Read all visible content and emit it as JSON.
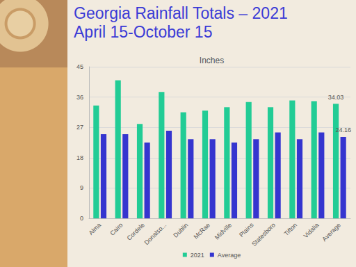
{
  "chart_data": {
    "type": "bar",
    "title": "Georgia Rainfall Totals – 2021\nApril 15-October 15",
    "subtitle": "Inches",
    "categories": [
      "Alma",
      "Cairo",
      "Cordele",
      "Donalso...",
      "Dublin",
      "McRae",
      "Midville",
      "Plains",
      "Statesboro",
      "Tifton",
      "Vidalia",
      "Average"
    ],
    "series": [
      {
        "name": "2021",
        "color": "#22cc95",
        "values": [
          33.5,
          41,
          28,
          37.5,
          31.5,
          32,
          33,
          34.5,
          33,
          35,
          34.8,
          34.03
        ],
        "value_labels": [
          null,
          null,
          null,
          null,
          null,
          null,
          null,
          null,
          null,
          null,
          null,
          "34.03"
        ]
      },
      {
        "name": "Average",
        "color": "#3535cf",
        "values": [
          25,
          25,
          22.5,
          26,
          23.5,
          23.5,
          22.5,
          23.5,
          25.5,
          23.5,
          25.5,
          24.16
        ],
        "value_labels": [
          null,
          null,
          null,
          null,
          null,
          null,
          null,
          null,
          null,
          null,
          null,
          "24.16"
        ]
      }
    ],
    "ylim": [
      0,
      45
    ],
    "yticks": [
      0,
      9,
      18,
      27,
      36,
      45
    ],
    "grid": true,
    "legend": "bottom",
    "data_labels": true
  }
}
